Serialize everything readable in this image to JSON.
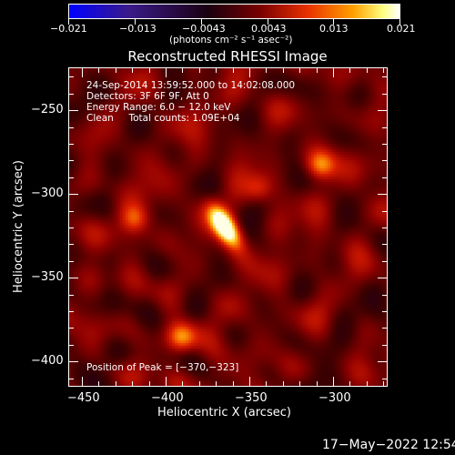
{
  "colorbar": {
    "tick_labels": [
      "−0.021",
      "−0.013",
      "−0.0043",
      "0.0043",
      "0.013",
      "0.021"
    ],
    "unit_label": "(photons cm⁻² s⁻¹ asec⁻²)",
    "colors": [
      "#0000ff",
      "#3a1a8a",
      "#000000",
      "#7a0000",
      "#e83000",
      "#ffa000",
      "#ffff80",
      "#ffffff"
    ]
  },
  "title": "Reconstructed RHESSI Image",
  "info_lines": [
    "24-Sep-2014 13:59:52.000 to 14:02:08.000",
    "Detectors: 3F 6F 9F, Att 0",
    "Energy Range: 6.0 − 12.0 keV",
    "Clean     Total counts: 1.09E+04"
  ],
  "peak_text": "Position of Peak = [−370,−323]",
  "x_axis": {
    "label": "Heliocentric X (arcsec)",
    "ticks": [
      "−450",
      "−400",
      "−350",
      "−300"
    ]
  },
  "y_axis": {
    "label": "Heliocentric Y (arcsec)",
    "ticks": [
      "−250",
      "−300",
      "−350",
      "−400"
    ]
  },
  "timestamp": "17−May−2022 12:54",
  "image_data": {
    "peak": [
      -370,
      -323
    ],
    "xlim": [
      -463,
      -272
    ],
    "ylim": [
      -228,
      -419
    ],
    "sources": [
      {
        "x": -370,
        "y": -323,
        "strength": 1.0
      },
      {
        "x": -313,
        "y": -286,
        "strength": 0.45
      },
      {
        "x": -396,
        "y": -389,
        "strength": 0.45
      },
      {
        "x": -424,
        "y": -318,
        "strength": 0.35
      },
      {
        "x": -350,
        "y": -300,
        "strength": 0.3
      }
    ]
  }
}
